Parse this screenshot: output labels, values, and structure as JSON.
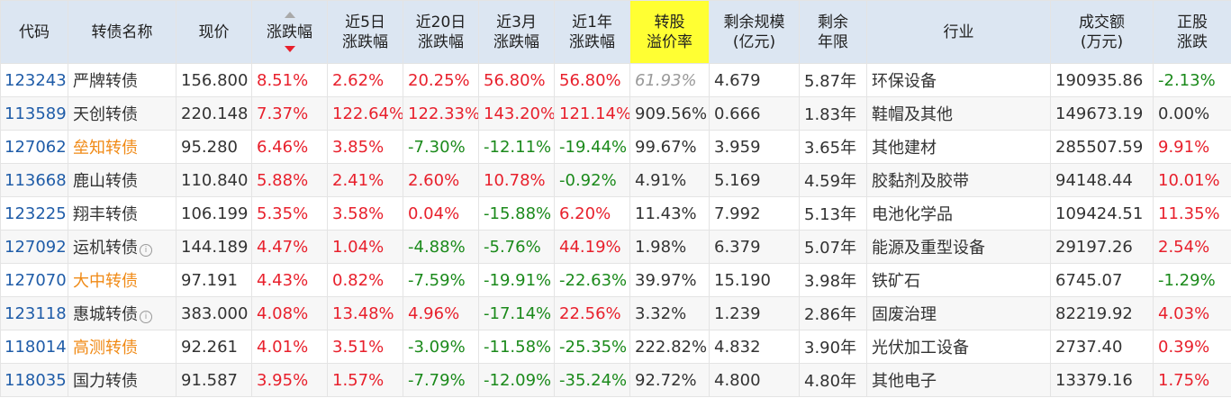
{
  "headers": {
    "code": "代码",
    "name": "转债名称",
    "price": "现价",
    "change": "涨跌幅",
    "chg5_l1": "近5日",
    "chg5_l2": "涨跌幅",
    "chg20_l1": "近20日",
    "chg20_l2": "涨跌幅",
    "chg3m_l1": "近3月",
    "chg3m_l2": "涨跌幅",
    "chg1y_l1": "近1年",
    "chg1y_l2": "涨跌幅",
    "premium_l1": "转股",
    "premium_l2": "溢价率",
    "scale_l1": "剩余规模",
    "scale_l2": "(亿元)",
    "years_l1": "剩余",
    "years_l2": "年限",
    "industry": "行业",
    "amount_l1": "成交额",
    "amount_l2": "(万元)",
    "stock_l1": "正股",
    "stock_l2": "涨跌"
  },
  "sort": {
    "column": "change",
    "direction": "desc"
  },
  "colors": {
    "up": "#e8202c",
    "down": "#1b8a1b",
    "code": "#1f5ca8",
    "highlight_name": "#f08a16",
    "header_bg": "#dce6f2",
    "premium_header_bg": "#ffff33"
  },
  "rows": [
    {
      "code": "123243",
      "name": "严牌转债",
      "price": "156.800",
      "change": "8.51%",
      "chg5": "2.62%",
      "chg20": "20.25%",
      "chg3m": "56.80%",
      "chg1y": "56.80%",
      "premium": "61.93%",
      "scale": "4.679",
      "years": "5.87年",
      "industry": "环保设备",
      "amount": "190935.86",
      "stock": "-2.13%"
    },
    {
      "code": "113589",
      "name": "天创转债",
      "price": "220.148",
      "change": "7.37%",
      "chg5": "122.64%",
      "chg20": "122.33%",
      "chg3m": "143.20%",
      "chg1y": "121.14%",
      "premium": "909.56%",
      "scale": "0.666",
      "years": "1.83年",
      "industry": "鞋帽及其他",
      "amount": "149673.19",
      "stock": "0.00%"
    },
    {
      "code": "127062",
      "name": "垒知转债",
      "price": "95.280",
      "change": "6.46%",
      "chg5": "3.85%",
      "chg20": "-7.30%",
      "chg3m": "-12.11%",
      "chg1y": "-19.44%",
      "premium": "99.67%",
      "scale": "3.959",
      "years": "3.65年",
      "industry": "其他建材",
      "amount": "285507.59",
      "stock": "9.91%"
    },
    {
      "code": "113668",
      "name": "鹿山转债",
      "price": "110.840",
      "change": "5.88%",
      "chg5": "2.41%",
      "chg20": "2.60%",
      "chg3m": "10.78%",
      "chg1y": "-0.92%",
      "premium": "4.91%",
      "scale": "5.169",
      "years": "4.59年",
      "industry": "胶黏剂及胶带",
      "amount": "94148.44",
      "stock": "10.01%"
    },
    {
      "code": "123225",
      "name": "翔丰转债",
      "price": "106.199",
      "change": "5.35%",
      "chg5": "3.58%",
      "chg20": "0.04%",
      "chg3m": "-15.88%",
      "chg1y": "6.20%",
      "premium": "11.43%",
      "scale": "7.992",
      "years": "5.13年",
      "industry": "电池化学品",
      "amount": "109424.51",
      "stock": "11.35%"
    },
    {
      "code": "127092",
      "name": "运机转债",
      "price": "144.189",
      "change": "4.47%",
      "chg5": "1.04%",
      "chg20": "-4.88%",
      "chg3m": "-5.76%",
      "chg1y": "44.19%",
      "premium": "1.98%",
      "scale": "6.379",
      "years": "5.07年",
      "industry": "能源及重型设备",
      "amount": "29197.26",
      "stock": "2.54%"
    },
    {
      "code": "127070",
      "name": "大中转债",
      "price": "97.191",
      "change": "4.43%",
      "chg5": "0.82%",
      "chg20": "-7.59%",
      "chg3m": "-19.91%",
      "chg1y": "-22.63%",
      "premium": "39.97%",
      "scale": "15.190",
      "years": "3.98年",
      "industry": "铁矿石",
      "amount": "6745.07",
      "stock": "-1.29%"
    },
    {
      "code": "123118",
      "name": "惠城转债",
      "price": "383.000",
      "change": "4.08%",
      "chg5": "13.48%",
      "chg20": "4.96%",
      "chg3m": "-17.14%",
      "chg1y": "22.56%",
      "premium": "3.32%",
      "scale": "1.239",
      "years": "2.86年",
      "industry": "固废治理",
      "amount": "82219.92",
      "stock": "4.03%"
    },
    {
      "code": "118014",
      "name": "高测转债",
      "price": "92.261",
      "change": "4.01%",
      "chg5": "3.51%",
      "chg20": "-3.09%",
      "chg3m": "-11.58%",
      "chg1y": "-25.35%",
      "premium": "222.82%",
      "scale": "4.832",
      "years": "3.90年",
      "industry": "光伏加工设备",
      "amount": "2737.40",
      "stock": "0.39%"
    },
    {
      "code": "118035",
      "name": "国力转债",
      "price": "91.587",
      "change": "3.95%",
      "chg5": "1.57%",
      "chg20": "-7.79%",
      "chg3m": "-12.09%",
      "chg1y": "-35.24%",
      "premium": "92.72%",
      "scale": "4.800",
      "years": "4.80年",
      "industry": "其他电子",
      "amount": "13379.16",
      "stock": "1.75%"
    }
  ],
  "orange_names": [
    2,
    6,
    8
  ],
  "info_icons": [
    5,
    7
  ],
  "muted_premium": [
    0
  ],
  "info_icon_glyph": "i"
}
